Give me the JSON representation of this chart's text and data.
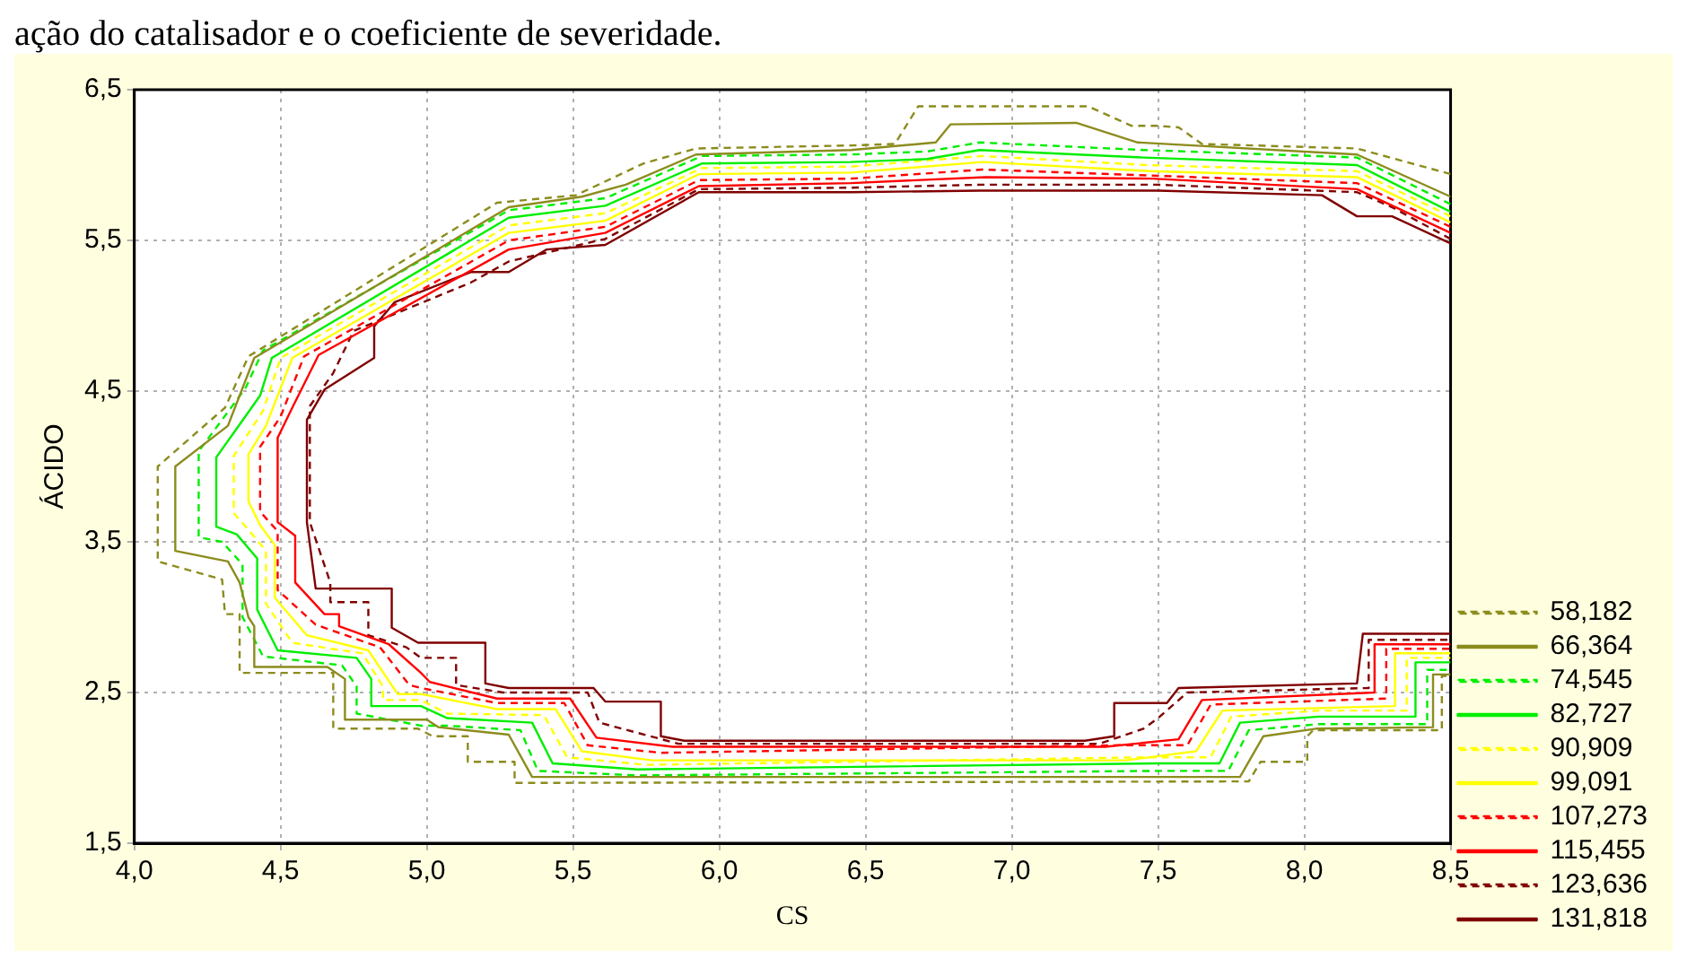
{
  "chart_data": {
    "type": "line",
    "xlabel": "CS",
    "ylabel": "ÁCIDO",
    "annotations": [
      "ação do catalisador e o coeficiente de severidade."
    ],
    "xlim": [
      4.0,
      8.5
    ],
    "xticks": [
      {
        "value": 4.0,
        "label": "4,0"
      },
      {
        "value": 4.5,
        "label": "4,5"
      },
      {
        "value": 5.0,
        "label": "5,0"
      },
      {
        "value": 5.5,
        "label": "5,5"
      },
      {
        "value": 6.0,
        "label": "6,0"
      },
      {
        "value": 6.5,
        "label": "6,5"
      },
      {
        "value": 7.0,
        "label": "7,0"
      },
      {
        "value": 7.5,
        "label": "7,5"
      },
      {
        "value": 8.0,
        "label": "8,0"
      },
      {
        "value": 8.5,
        "label": "8,5"
      }
    ],
    "ylim": [
      1.5,
      6.5
    ],
    "yticks": [
      {
        "value": 1.5,
        "label": "1,5"
      },
      {
        "value": 2.5,
        "label": "2,5"
      },
      {
        "value": 3.5,
        "label": "3,5"
      },
      {
        "value": 4.5,
        "label": "4,5"
      },
      {
        "value": 5.5,
        "label": "5,5"
      },
      {
        "value": 6.5,
        "label": "6,5"
      }
    ],
    "grid": true,
    "legend": "right",
    "marker": "none",
    "series": [
      {
        "name": "58,182",
        "color": "#8c8c1e",
        "line_style": "dashed",
        "x": [
          8.5,
          8.18,
          7.65,
          7.57,
          7.5,
          7.41,
          7.26,
          6.68,
          6.6,
          6.45,
          5.92,
          5.74,
          5.51,
          5.24,
          4.39,
          4.31,
          4.08,
          4.08,
          4.3,
          4.31,
          4.36,
          4.36,
          4.68,
          4.68,
          4.97,
          5.02,
          5.14,
          5.14,
          5.3,
          5.3,
          7.81,
          7.85,
          8.01,
          8.01,
          8.03,
          8.47,
          8.47,
          8.5
        ],
        "values": [
          5.94,
          6.11,
          6.14,
          6.25,
          6.26,
          6.26,
          6.39,
          6.39,
          6.14,
          6.13,
          6.11,
          6.01,
          5.8,
          5.75,
          4.73,
          4.39,
          4.0,
          3.37,
          3.25,
          3.02,
          3.02,
          2.63,
          2.63,
          2.26,
          2.26,
          2.21,
          2.21,
          2.04,
          2.04,
          1.9,
          1.91,
          2.04,
          2.04,
          2.21,
          2.25,
          2.25,
          2.61,
          2.61
        ]
      },
      {
        "name": "66,364",
        "color": "#8c8c1e",
        "line_style": "solid",
        "x": [
          8.5,
          8.18,
          7.43,
          7.22,
          6.79,
          6.74,
          6.45,
          5.92,
          5.68,
          5.53,
          5.28,
          4.41,
          4.32,
          4.14,
          4.14,
          4.32,
          4.36,
          4.39,
          4.41,
          4.41,
          4.66,
          4.72,
          4.72,
          5.0,
          5.04,
          5.28,
          5.36,
          7.78,
          7.86,
          8.04,
          8.44,
          8.44,
          8.5
        ],
        "values": [
          5.79,
          6.07,
          6.15,
          6.28,
          6.27,
          6.15,
          6.1,
          6.07,
          5.87,
          5.79,
          5.72,
          4.72,
          4.27,
          4.0,
          3.44,
          3.37,
          3.23,
          3.0,
          2.94,
          2.67,
          2.67,
          2.59,
          2.32,
          2.32,
          2.27,
          2.22,
          1.94,
          1.94,
          2.21,
          2.26,
          2.27,
          2.62,
          2.62
        ]
      },
      {
        "name": "74,545",
        "color": "#00ee00",
        "line_style": "dashed",
        "x": [
          8.5,
          8.18,
          7.45,
          6.89,
          6.71,
          6.45,
          5.94,
          5.61,
          5.28,
          4.44,
          4.38,
          4.22,
          4.22,
          4.3,
          4.37,
          4.37,
          4.44,
          4.71,
          4.76,
          4.76,
          4.98,
          5.07,
          5.32,
          5.38,
          5.72,
          7.5,
          7.74,
          7.81,
          8.05,
          8.42,
          8.42,
          8.5
        ],
        "values": [
          5.74,
          6.05,
          6.1,
          6.15,
          6.09,
          6.07,
          6.06,
          5.78,
          5.7,
          4.77,
          4.52,
          4.1,
          3.53,
          3.5,
          3.35,
          3.0,
          2.74,
          2.68,
          2.54,
          2.36,
          2.28,
          2.28,
          2.25,
          1.98,
          1.95,
          1.98,
          1.98,
          2.25,
          2.29,
          2.29,
          2.65,
          2.65
        ]
      },
      {
        "name": "82,727",
        "color": "#00ee00",
        "line_style": "solid",
        "x": [
          8.5,
          8.18,
          7.45,
          6.89,
          6.71,
          6.45,
          5.94,
          5.61,
          5.28,
          4.47,
          4.43,
          4.28,
          4.28,
          4.35,
          4.42,
          4.42,
          4.49,
          4.76,
          4.81,
          4.81,
          4.98,
          5.07,
          5.36,
          5.43,
          5.72,
          7.5,
          7.71,
          7.78,
          8.05,
          8.38,
          8.38,
          8.5
        ],
        "values": [
          5.69,
          6.0,
          6.05,
          6.1,
          6.04,
          6.02,
          6.01,
          5.73,
          5.65,
          4.72,
          4.47,
          4.06,
          3.6,
          3.55,
          3.39,
          3.05,
          2.78,
          2.73,
          2.59,
          2.41,
          2.41,
          2.33,
          2.3,
          2.03,
          1.99,
          2.03,
          2.03,
          2.3,
          2.34,
          2.34,
          2.7,
          2.7
        ]
      },
      {
        "name": "90,909",
        "color": "#ffff00",
        "line_style": "dashed",
        "x": [
          8.5,
          8.18,
          7.46,
          6.9,
          6.45,
          5.94,
          5.61,
          5.28,
          4.5,
          4.44,
          4.34,
          4.34,
          4.39,
          4.45,
          4.45,
          4.54,
          4.78,
          4.85,
          4.85,
          4.98,
          5.07,
          5.4,
          5.48,
          5.75,
          7.45,
          7.68,
          7.75,
          8.05,
          8.35,
          8.35,
          8.5
        ],
        "values": [
          5.66,
          5.96,
          6.0,
          6.06,
          5.99,
          5.98,
          5.68,
          5.6,
          4.72,
          4.37,
          4.07,
          3.69,
          3.58,
          3.44,
          3.09,
          2.83,
          2.76,
          2.54,
          2.45,
          2.45,
          2.36,
          2.35,
          2.07,
          2.02,
          2.07,
          2.07,
          2.34,
          2.38,
          2.38,
          2.73,
          2.73
        ]
      },
      {
        "name": "99,091",
        "color": "#ffff00",
        "line_style": "solid",
        "x": [
          8.5,
          8.18,
          7.47,
          6.9,
          6.45,
          5.93,
          5.61,
          5.28,
          4.54,
          4.45,
          4.39,
          4.39,
          4.43,
          4.48,
          4.48,
          4.59,
          4.8,
          4.9,
          4.98,
          5.24,
          5.44,
          5.53,
          5.77,
          7.39,
          7.63,
          7.72,
          8.31,
          8.31,
          8.5
        ],
        "values": [
          5.62,
          5.92,
          5.96,
          6.02,
          5.95,
          5.94,
          5.63,
          5.55,
          4.72,
          4.27,
          4.08,
          3.77,
          3.61,
          3.48,
          3.13,
          2.88,
          2.78,
          2.49,
          2.49,
          2.39,
          2.39,
          2.11,
          2.05,
          2.05,
          2.11,
          2.38,
          2.41,
          2.76,
          2.76
        ]
      },
      {
        "name": "107,273",
        "color": "#ff0000",
        "line_style": "dashed",
        "x": [
          8.5,
          8.18,
          7.48,
          6.9,
          6.45,
          5.93,
          5.61,
          5.28,
          4.58,
          4.5,
          4.43,
          4.43,
          4.49,
          4.49,
          4.62,
          4.84,
          4.94,
          4.98,
          5.24,
          5.47,
          5.55,
          5.8,
          7.36,
          7.6,
          7.68,
          8.28,
          8.28,
          8.5
        ],
        "values": [
          5.59,
          5.88,
          5.93,
          5.97,
          5.91,
          5.9,
          5.59,
          5.5,
          4.73,
          4.33,
          4.13,
          3.7,
          3.57,
          3.18,
          2.95,
          2.8,
          2.55,
          2.53,
          2.43,
          2.43,
          2.15,
          2.1,
          2.15,
          2.15,
          2.42,
          2.46,
          2.79,
          2.79
        ]
      },
      {
        "name": "115,455",
        "color": "#ff0000",
        "line_style": "solid",
        "x": [
          8.5,
          8.18,
          7.48,
          6.91,
          6.45,
          5.93,
          5.61,
          5.28,
          4.63,
          4.54,
          4.49,
          4.49,
          4.55,
          4.55,
          4.65,
          4.7,
          4.7,
          4.87,
          4.98,
          5.01,
          5.24,
          5.49,
          5.58,
          5.84,
          7.32,
          7.57,
          7.65,
          8.24,
          8.24,
          8.5
        ],
        "values": [
          5.55,
          5.84,
          5.91,
          5.92,
          5.88,
          5.86,
          5.55,
          5.44,
          4.74,
          4.39,
          4.19,
          3.63,
          3.54,
          3.23,
          3.02,
          3.02,
          2.94,
          2.82,
          2.63,
          2.57,
          2.46,
          2.46,
          2.2,
          2.14,
          2.14,
          2.19,
          2.45,
          2.5,
          2.82,
          2.82
        ]
      },
      {
        "name": "123,636",
        "color": "#800000",
        "line_style": "dashed",
        "x": [
          8.5,
          8.3,
          8.18,
          7.49,
          6.9,
          6.45,
          5.93,
          5.61,
          5.28,
          5.15,
          4.75,
          4.68,
          4.6,
          4.6,
          4.67,
          4.67,
          4.8,
          4.8,
          4.93,
          4.98,
          5.1,
          5.1,
          5.26,
          5.55,
          5.59,
          5.86,
          7.3,
          7.45,
          7.5,
          7.6,
          8.22,
          8.22,
          8.5
        ],
        "values": [
          5.51,
          5.72,
          5.82,
          5.87,
          5.87,
          5.85,
          5.84,
          5.51,
          5.36,
          5.22,
          4.9,
          4.62,
          4.4,
          3.63,
          3.23,
          3.1,
          3.1,
          2.88,
          2.8,
          2.73,
          2.73,
          2.55,
          2.5,
          2.5,
          2.3,
          2.16,
          2.16,
          2.26,
          2.33,
          2.5,
          2.53,
          2.85,
          2.85
        ]
      },
      {
        "name": "131,818",
        "color": "#800000",
        "line_style": "solid",
        "x": [
          8.5,
          8.3,
          8.18,
          8.06,
          7.5,
          6.89,
          6.45,
          5.93,
          5.61,
          5.41,
          5.28,
          5.15,
          4.89,
          4.82,
          4.82,
          4.65,
          4.59,
          4.59,
          4.62,
          4.88,
          4.88,
          4.97,
          5.2,
          5.2,
          5.28,
          5.57,
          5.61,
          5.8,
          5.8,
          5.88,
          7.25,
          7.35,
          7.35,
          7.53,
          7.57,
          8.18,
          8.2,
          8.5
        ],
        "values": [
          5.48,
          5.66,
          5.66,
          5.8,
          5.83,
          5.83,
          5.82,
          5.82,
          5.47,
          5.44,
          5.29,
          5.29,
          5.09,
          4.93,
          4.72,
          4.51,
          4.31,
          3.63,
          3.19,
          3.19,
          2.93,
          2.83,
          2.83,
          2.56,
          2.53,
          2.53,
          2.44,
          2.44,
          2.21,
          2.18,
          2.18,
          2.21,
          2.43,
          2.43,
          2.53,
          2.56,
          2.89,
          2.89
        ]
      }
    ]
  }
}
